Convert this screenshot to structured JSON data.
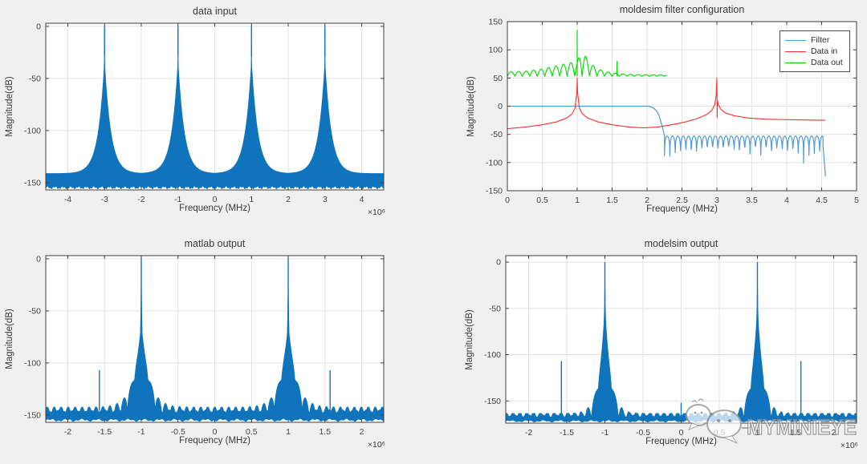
{
  "figure": {
    "background": "#f0f0f0",
    "plot_background": "#ffffff",
    "axis_color": "#3f3f3f",
    "grid_color": "#e2e2e2"
  },
  "watermark": {
    "text": "MYMINIEYE",
    "icon": "wechat-chat-bubbles-icon",
    "color": "#8d8d8d"
  },
  "legend": {
    "position": "top-right",
    "entries": [
      {
        "label": "Filter",
        "color": "#4f9ace"
      },
      {
        "label": "Data in",
        "color": "#ff2e2e"
      },
      {
        "label": "Data out",
        "color": "#00d900"
      }
    ]
  },
  "chart_data": [
    {
      "id": "data_input",
      "type": "spectrum",
      "title": "data input",
      "xlabel": "Frequency (MHz)",
      "ylabel": "Magnitude(dB)",
      "x_exponent": "×10⁶",
      "xlim": [
        -4.6,
        4.6
      ],
      "ylim": [
        -157,
        3
      ],
      "xticks": [
        -4,
        -3,
        -2,
        -1,
        0,
        1,
        2,
        3,
        4
      ],
      "yticks": [
        0,
        -50,
        -100,
        -150
      ],
      "grid": true,
      "color": "#0f74bc",
      "spectrum": {
        "peaks": [
          -3,
          -1,
          1,
          3
        ],
        "peak_top_db": 0,
        "spike_slope": 2800,
        "skirt_base": -141,
        "skirt_amp": 112,
        "skirt_decay": 0.173,
        "floor_top": -148,
        "floor_bottom": -155,
        "noise": 1.4,
        "scallop": null,
        "needles": []
      }
    },
    {
      "id": "filter_config",
      "type": "lines",
      "title": "moldesim filter configuration",
      "xlabel": "Frequency (MHz)",
      "ylabel": "Magnitude(dB)",
      "x_exponent": "",
      "xlim": [
        0,
        5
      ],
      "ylim": [
        -150,
        150
      ],
      "xticks": [
        0,
        0.5,
        1,
        1.5,
        2,
        2.5,
        3,
        3.5,
        4,
        4.5,
        5
      ],
      "yticks": [
        150,
        100,
        50,
        0,
        -50,
        -100,
        -150
      ],
      "grid": true,
      "series": {
        "filter": {
          "name": "Filter",
          "color": "#4f9ace",
          "passband": [
            [
              0,
              0
            ],
            [
              2.02,
              0
            ],
            [
              2.06,
              -1.5
            ],
            [
              2.1,
              -4
            ],
            [
              2.14,
              -9
            ],
            [
              2.17,
              -16
            ],
            [
              2.2,
              -28
            ],
            [
              2.23,
              -42
            ],
            [
              2.25,
              -53
            ]
          ],
          "stopband": {
            "start": 2.25,
            "end": 4.52,
            "period": 0.0766,
            "top": -53,
            "notch_depths": [
              -88,
              -91,
              -107,
              -79,
              -77,
              -109,
              -74,
              -72,
              -71,
              -72,
              -74,
              -71,
              -69,
              -80,
              -73,
              -85,
              -71,
              -75,
              -87,
              -72,
              -79,
              -71,
              -91,
              -75,
              -83,
              -104,
              -79,
              -87,
              -99,
              -122
            ]
          },
          "tail": [
            [
              4.52,
              -70
            ],
            [
              4.555,
              -125
            ]
          ]
        },
        "data_in": {
          "name": "Data in",
          "color": "#ff2e2e",
          "breakpoints": [
            [
              0,
              -40
            ],
            [
              0.25,
              -37
            ],
            [
              0.5,
              -33
            ],
            [
              0.7,
              -28
            ],
            [
              0.85,
              -21
            ],
            [
              0.93,
              -13
            ],
            [
              0.97,
              -3
            ],
            [
              0.995,
              25
            ],
            [
              1.0,
              50
            ],
            [
              1.005,
              25
            ],
            [
              1.03,
              -3
            ],
            [
              1.07,
              -13
            ],
            [
              1.15,
              -21
            ],
            [
              1.3,
              -28
            ],
            [
              1.5,
              -33
            ],
            [
              1.75,
              -37
            ],
            [
              1.95,
              -38.5
            ],
            [
              2.15,
              -37
            ],
            [
              2.35,
              -33
            ],
            [
              2.55,
              -28
            ],
            [
              2.72,
              -22
            ],
            [
              2.85,
              -15
            ],
            [
              2.93,
              -7
            ],
            [
              2.97,
              3
            ],
            [
              2.99,
              20
            ],
            [
              3.0,
              50
            ],
            [
              3.004,
              -20
            ],
            [
              3.008,
              10
            ],
            [
              3.02,
              3
            ],
            [
              3.06,
              -6
            ],
            [
              3.12,
              -12
            ],
            [
              3.25,
              -17
            ],
            [
              3.45,
              -21
            ],
            [
              3.7,
              -23
            ],
            [
              4.0,
              -24
            ],
            [
              4.3,
              -24.5
            ],
            [
              4.55,
              -25
            ]
          ]
        },
        "data_out": {
          "name": "Data out",
          "color": "#00d900",
          "base": 53,
          "period": 0.107,
          "end": 2.28,
          "amp_bp": [
            [
              0,
              8
            ],
            [
              0.25,
              9
            ],
            [
              0.45,
              12
            ],
            [
              0.65,
              17
            ],
            [
              0.85,
              23
            ],
            [
              1.0,
              26
            ],
            [
              1.05,
              42
            ],
            [
              1.12,
              36
            ],
            [
              1.18,
              24
            ],
            [
              1.28,
              14
            ],
            [
              1.42,
              8
            ],
            [
              1.6,
              4.5
            ],
            [
              1.85,
              3
            ],
            [
              2.28,
              2.5
            ]
          ],
          "needles": [
            {
              "f": 1.0,
              "top": 135
            },
            {
              "f": 1.57,
              "top": 80
            }
          ]
        }
      }
    },
    {
      "id": "matlab_output",
      "type": "spectrum",
      "title": "matlab output",
      "xlabel": "Frequency (MHz)",
      "ylabel": "Magnitude(dB)",
      "x_exponent": "×10⁶",
      "xlim": [
        -2.3,
        2.3
      ],
      "ylim": [
        -157,
        3
      ],
      "xticks": [
        -2,
        -1.5,
        -1,
        -0.5,
        0,
        0.5,
        1,
        1.5,
        2
      ],
      "yticks": [
        0,
        -50,
        -100,
        -150
      ],
      "grid": true,
      "color": "#0f74bc",
      "spectrum": {
        "peaks": [
          -1,
          1
        ],
        "peak_top_db": 0,
        "spike_slope": 5000,
        "skirt_base": -142,
        "skirt_amp": 82,
        "skirt_decay": 0.105,
        "floor_top": -146,
        "floor_bottom": -155,
        "noise": 1.4,
        "scallop": {
          "period": 0.095,
          "depth": 16,
          "core": 0.05,
          "ramp": 0.08
        },
        "needles": [
          {
            "f": -1.57,
            "top": -107
          },
          {
            "f": 1.57,
            "top": -107
          }
        ]
      }
    },
    {
      "id": "modelsim_output",
      "type": "spectrum",
      "title": "modelsim output",
      "xlabel": "Frequency (MHz)",
      "ylabel": "Magnitude(dB)",
      "x_exponent": "×10⁶",
      "xlim": [
        -2.3,
        2.3
      ],
      "ylim": [
        -174,
        7
      ],
      "xticks": [
        -2,
        -1.5,
        -1,
        -0.5,
        0,
        0.5,
        1,
        1.5,
        2
      ],
      "yticks": [
        0,
        -50,
        -100,
        -150
      ],
      "grid": true,
      "color": "#0f74bc",
      "spectrum": {
        "peaks": [
          -1,
          1
        ],
        "peak_top_db": 0,
        "spike_slope": 5000,
        "skirt_base": -163,
        "skirt_amp": 120,
        "skirt_decay": 0.075,
        "floor_top": -166,
        "floor_bottom": -172,
        "noise": 1.2,
        "scallop": {
          "period": 0.09,
          "depth": 18,
          "core": 0.04,
          "ramp": 0.08
        },
        "needles": [
          {
            "f": -1.57,
            "top": -107
          },
          {
            "f": 1.57,
            "top": -107
          },
          {
            "f": 0,
            "top": -152
          }
        ]
      }
    }
  ]
}
